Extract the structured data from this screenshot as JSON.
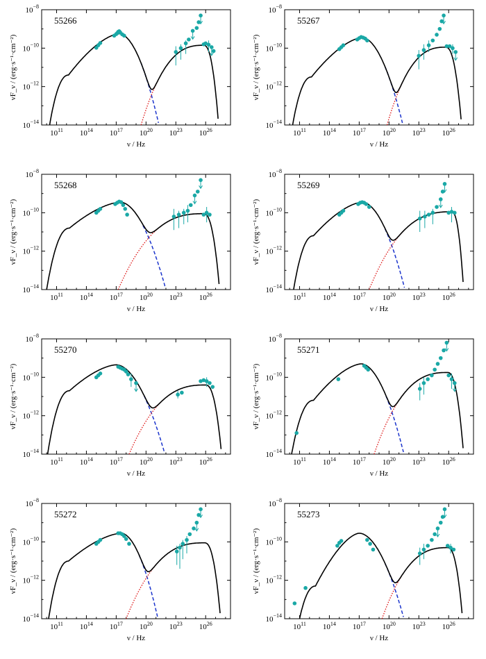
{
  "figure": {
    "xlabel": "ν / Hz",
    "ylabel": "νF_ν / (erg·s⁻¹·cm⁻²)",
    "x_ticks": [
      "10^11",
      "10^14",
      "10^17",
      "10^20",
      "10^23",
      "10^26"
    ],
    "y_ticks": [
      "10^-8",
      "10^-10",
      "10^-12",
      "10^-14"
    ]
  },
  "colors": {
    "data": "#1aa8a6",
    "total": "#000000",
    "synchrotron": "#1a33cc",
    "ssc": "#dd1111"
  },
  "chart_data": [
    {
      "type": "scatter",
      "title": "55266",
      "xlabel": "ν / Hz",
      "ylabel": "νF_ν / (erg·s⁻¹·cm⁻²)",
      "xlim_log": [
        9.5,
        28.5
      ],
      "ylim_log": [
        -14,
        -8
      ],
      "model": {
        "syn_peak": [
          17.3,
          -9.25
        ],
        "syn_start": [
          10.3,
          -14
        ],
        "syn_knee": [
          12.2,
          -11.4
        ],
        "syn_end": [
          21.3,
          -14
        ],
        "ssc_peak": [
          25.8,
          -9.85
        ],
        "ssc_start": [
          19.5,
          -14
        ],
        "ssc_end": [
          27.3,
          -14
        ],
        "dip": [
          20.7,
          -11.95
        ]
      },
      "data_points": [
        [
          15.0,
          -9.98
        ],
        [
          15.2,
          -9.85
        ],
        [
          15.4,
          -9.73
        ],
        [
          16.8,
          -9.35
        ],
        [
          17.0,
          -9.27
        ],
        [
          17.1,
          -9.22
        ],
        [
          17.2,
          -9.15
        ],
        [
          17.3,
          -9.12
        ],
        [
          17.4,
          -9.18
        ],
        [
          17.6,
          -9.28
        ],
        [
          17.8,
          -9.35
        ],
        [
          23.0,
          -10.2
        ],
        [
          23.5,
          -10.0
        ],
        [
          24.0,
          -9.75
        ],
        [
          24.3,
          -9.55
        ],
        [
          24.7,
          -9.1
        ],
        [
          25.1,
          -8.95
        ],
        [
          25.3,
          -8.65
        ],
        [
          25.5,
          -8.3
        ],
        [
          25.8,
          -9.8
        ],
        [
          26.0,
          -9.75
        ],
        [
          26.3,
          -9.82
        ],
        [
          26.6,
          -9.95
        ],
        [
          26.8,
          -10.15
        ]
      ],
      "error_bars": [
        [
          23.0,
          -10.9,
          -9.9
        ],
        [
          23.5,
          -10.6,
          -9.8
        ],
        [
          24.0,
          -10.3,
          -9.6
        ],
        [
          26.3,
          -10.2,
          -9.6
        ]
      ],
      "upper_limits": [
        [
          24.7,
          -9.1
        ],
        [
          25.5,
          -8.3
        ],
        [
          26.6,
          -9.95
        ]
      ]
    },
    {
      "type": "scatter",
      "title": "55267",
      "xlabel": "ν / Hz",
      "ylabel": "νF_ν / (erg·s⁻¹·cm⁻²)",
      "xlim_log": [
        9.5,
        28.5
      ],
      "ylim_log": [
        -14,
        -8
      ],
      "model": {
        "syn_peak": [
          17.3,
          -9.45
        ],
        "syn_start": [
          10.3,
          -14
        ],
        "syn_knee": [
          12.2,
          -11.5
        ],
        "syn_end": [
          21.4,
          -14
        ],
        "ssc_peak": [
          25.7,
          -9.95
        ],
        "ssc_start": [
          19.8,
          -14
        ],
        "ssc_end": [
          27.3,
          -14
        ],
        "dip": [
          20.8,
          -11.95
        ]
      },
      "data_points": [
        [
          15.0,
          -10.05
        ],
        [
          15.2,
          -9.95
        ],
        [
          15.4,
          -9.85
        ],
        [
          16.8,
          -9.55
        ],
        [
          17.0,
          -9.48
        ],
        [
          17.2,
          -9.42
        ],
        [
          17.4,
          -9.45
        ],
        [
          17.6,
          -9.5
        ],
        [
          17.8,
          -9.6
        ],
        [
          23.0,
          -10.4
        ],
        [
          23.5,
          -10.1
        ],
        [
          24.0,
          -9.85
        ],
        [
          24.4,
          -9.6
        ],
        [
          24.8,
          -9.3
        ],
        [
          25.1,
          -9.0
        ],
        [
          25.3,
          -8.6
        ],
        [
          25.5,
          -8.3
        ],
        [
          25.8,
          -9.9
        ],
        [
          26.1,
          -9.9
        ],
        [
          26.4,
          -10.0
        ],
        [
          26.7,
          -10.2
        ]
      ],
      "error_bars": [
        [
          23.0,
          -11.1,
          -10.1
        ],
        [
          23.5,
          -10.6,
          -9.8
        ],
        [
          24.0,
          -10.2,
          -9.6
        ],
        [
          26.4,
          -10.3,
          -9.8
        ]
      ],
      "upper_limits": [
        [
          25.5,
          -8.3
        ],
        [
          26.7,
          -10.2
        ]
      ]
    },
    {
      "type": "scatter",
      "title": "55268",
      "xlabel": "ν / Hz",
      "ylabel": "νF_ν / (erg·s⁻¹·cm⁻²)",
      "xlim_log": [
        9.5,
        28.5
      ],
      "ylim_log": [
        -14,
        -8
      ],
      "model": {
        "syn_peak": [
          17.4,
          -9.45
        ],
        "syn_start": [
          10.0,
          -14
        ],
        "syn_knee": [
          12.3,
          -10.8
        ],
        "syn_end": [
          22.0,
          -14
        ],
        "ssc_peak": [
          25.8,
          -10.05
        ],
        "ssc_start": [
          17.2,
          -14
        ],
        "ssc_end": [
          27.4,
          -14
        ],
        "dip": [
          20.9,
          -11.15
        ]
      },
      "data_points": [
        [
          15.0,
          -10.0
        ],
        [
          15.2,
          -9.9
        ],
        [
          15.4,
          -9.8
        ],
        [
          16.9,
          -9.55
        ],
        [
          17.1,
          -9.48
        ],
        [
          17.3,
          -9.42
        ],
        [
          17.5,
          -9.45
        ],
        [
          17.7,
          -9.6
        ],
        [
          17.9,
          -9.8
        ],
        [
          18.1,
          -10.1
        ],
        [
          22.8,
          -10.2
        ],
        [
          23.3,
          -10.1
        ],
        [
          23.8,
          -10.0
        ],
        [
          24.2,
          -9.9
        ],
        [
          24.5,
          -9.6
        ],
        [
          24.9,
          -9.1
        ],
        [
          25.2,
          -8.9
        ],
        [
          25.5,
          -8.3
        ],
        [
          25.8,
          -10.1
        ],
        [
          26.1,
          -10.0
        ],
        [
          26.4,
          -10.1
        ]
      ],
      "error_bars": [
        [
          22.8,
          -10.9,
          -9.8
        ],
        [
          23.3,
          -10.8,
          -9.9
        ],
        [
          23.8,
          -10.6,
          -9.8
        ],
        [
          24.2,
          -10.5,
          -9.6
        ],
        [
          26.1,
          -10.5,
          -9.7
        ]
      ],
      "upper_limits": [
        [
          25.5,
          -8.3
        ],
        [
          24.9,
          -9.1
        ]
      ]
    },
    {
      "type": "scatter",
      "title": "55269",
      "xlabel": "ν / Hz",
      "ylabel": "νF_ν / (erg·s⁻¹·cm⁻²)",
      "xlim_log": [
        9.5,
        28.5
      ],
      "ylim_log": [
        -14,
        -8
      ],
      "model": {
        "syn_peak": [
          17.3,
          -9.45
        ],
        "syn_start": [
          10.4,
          -14
        ],
        "syn_knee": [
          12.4,
          -11.2
        ],
        "syn_end": [
          21.6,
          -14
        ],
        "ssc_peak": [
          26.3,
          -9.95
        ],
        "ssc_start": [
          18.0,
          -14
        ],
        "ssc_end": [
          27.5,
          -14
        ],
        "dip": [
          20.8,
          -11.3
        ]
      },
      "data_points": [
        [
          15.0,
          -10.1
        ],
        [
          15.2,
          -10.0
        ],
        [
          15.4,
          -9.9
        ],
        [
          16.9,
          -9.55
        ],
        [
          17.1,
          -9.48
        ],
        [
          17.3,
          -9.45
        ],
        [
          17.5,
          -9.48
        ],
        [
          17.7,
          -9.55
        ],
        [
          18.0,
          -9.7
        ],
        [
          23.1,
          -10.3
        ],
        [
          23.6,
          -10.2
        ],
        [
          24.0,
          -10.1
        ],
        [
          24.4,
          -10.0
        ],
        [
          24.8,
          -9.7
        ],
        [
          25.2,
          -9.3
        ],
        [
          25.4,
          -8.9
        ],
        [
          25.6,
          -8.5
        ],
        [
          26.0,
          -10.0
        ],
        [
          26.3,
          -9.95
        ],
        [
          26.6,
          -10.0
        ]
      ],
      "error_bars": [
        [
          23.1,
          -11.0,
          -9.9
        ],
        [
          23.6,
          -10.8,
          -9.9
        ],
        [
          24.4,
          -10.6,
          -9.8
        ],
        [
          26.3,
          -10.5,
          -9.7
        ]
      ],
      "upper_limits": [
        [
          25.6,
          -8.5
        ],
        [
          25.2,
          -9.3
        ]
      ]
    },
    {
      "type": "scatter",
      "title": "55270",
      "xlabel": "ν / Hz",
      "ylabel": "νF_ν / (erg·s⁻¹·cm⁻²)",
      "xlim_log": [
        9.5,
        28.5
      ],
      "ylim_log": [
        -14,
        -8
      ],
      "model": {
        "syn_peak": [
          17.0,
          -9.35
        ],
        "syn_start": [
          10.1,
          -14
        ],
        "syn_knee": [
          12.3,
          -10.7
        ],
        "syn_end": [
          21.9,
          -14
        ],
        "ssc_peak": [
          26.0,
          -10.4
        ],
        "ssc_start": [
          18.3,
          -14
        ],
        "ssc_end": [
          27.6,
          -14
        ],
        "dip": [
          21.0,
          -11.4
        ]
      },
      "data_points": [
        [
          15.0,
          -10.0
        ],
        [
          15.2,
          -9.9
        ],
        [
          15.4,
          -9.8
        ],
        [
          17.2,
          -9.45
        ],
        [
          17.4,
          -9.5
        ],
        [
          17.6,
          -9.55
        ],
        [
          17.8,
          -9.6
        ],
        [
          18.0,
          -9.7
        ],
        [
          18.2,
          -9.85
        ],
        [
          18.5,
          -10.1
        ],
        [
          19.0,
          -10.3
        ],
        [
          23.2,
          -10.9
        ],
        [
          23.6,
          -10.8
        ],
        [
          25.5,
          -10.2
        ],
        [
          25.8,
          -10.15
        ],
        [
          26.1,
          -10.2
        ],
        [
          26.4,
          -10.3
        ],
        [
          26.7,
          -10.5
        ]
      ],
      "error_bars": [
        [
          18.5,
          -10.5,
          -9.8
        ],
        [
          23.2,
          -11.1,
          -10.7
        ],
        [
          26.1,
          -10.5,
          -10.0
        ]
      ],
      "upper_limits": [
        [
          19.0,
          -10.3
        ]
      ]
    },
    {
      "type": "scatter",
      "title": "55271",
      "xlabel": "ν / Hz",
      "ylabel": "νF_ν / (erg·s⁻¹·cm⁻²)",
      "xlim_log": [
        9.5,
        28.5
      ],
      "ylim_log": [
        -14,
        -8
      ],
      "model": {
        "syn_peak": [
          17.2,
          -9.3
        ],
        "syn_start": [
          10.2,
          -14
        ],
        "syn_knee": [
          12.4,
          -11.2
        ],
        "syn_end": [
          21.5,
          -14
        ],
        "ssc_peak": [
          25.9,
          -9.75
        ],
        "ssc_start": [
          18.5,
          -14
        ],
        "ssc_end": [
          27.5,
          -14
        ],
        "dip": [
          20.9,
          -11.7
        ]
      },
      "data_points": [
        [
          10.7,
          -12.9
        ],
        [
          14.9,
          -10.1
        ],
        [
          17.5,
          -9.4
        ],
        [
          17.7,
          -9.5
        ],
        [
          17.9,
          -9.6
        ],
        [
          23.1,
          -10.6
        ],
        [
          23.5,
          -10.3
        ],
        [
          23.9,
          -10.1
        ],
        [
          24.3,
          -9.9
        ],
        [
          24.6,
          -9.6
        ],
        [
          24.9,
          -9.3
        ],
        [
          25.2,
          -9.0
        ],
        [
          25.5,
          -8.6
        ],
        [
          25.8,
          -8.2
        ],
        [
          26.0,
          -9.9
        ],
        [
          26.3,
          -10.1
        ],
        [
          26.6,
          -10.3
        ]
      ],
      "error_bars": [
        [
          23.1,
          -11.2,
          -10.3
        ],
        [
          23.5,
          -10.9,
          -10.0
        ],
        [
          26.3,
          -10.6,
          -9.8
        ]
      ],
      "upper_limits": [
        [
          25.8,
          -8.2
        ],
        [
          26.6,
          -10.3
        ]
      ]
    },
    {
      "type": "scatter",
      "title": "55272",
      "xlabel": "ν / Hz",
      "ylabel": "νF_ν / (erg·s⁻¹·cm⁻²)",
      "xlim_log": [
        9.5,
        28.5
      ],
      "ylim_log": [
        -14,
        -8
      ],
      "model": {
        "syn_peak": [
          17.5,
          -9.55
        ],
        "syn_start": [
          10.2,
          -14
        ],
        "syn_knee": [
          12.2,
          -11.0
        ],
        "syn_end": [
          21.2,
          -14
        ],
        "ssc_peak": [
          25.9,
          -10.05
        ],
        "ssc_start": [
          18.0,
          -14
        ],
        "ssc_end": [
          27.5,
          -14
        ],
        "dip": [
          20.5,
          -11.55
        ]
      },
      "data_points": [
        [
          15.0,
          -10.1
        ],
        [
          15.2,
          -10.0
        ],
        [
          15.4,
          -9.9
        ],
        [
          17.2,
          -9.55
        ],
        [
          17.4,
          -9.55
        ],
        [
          17.6,
          -9.6
        ],
        [
          17.8,
          -9.7
        ],
        [
          18.0,
          -9.85
        ],
        [
          18.3,
          -10.1
        ],
        [
          23.1,
          -10.5
        ],
        [
          23.4,
          -10.3
        ],
        [
          23.7,
          -10.1
        ],
        [
          24.1,
          -9.9
        ],
        [
          24.4,
          -9.6
        ],
        [
          24.8,
          -9.3
        ],
        [
          25.1,
          -9.0
        ],
        [
          25.3,
          -8.6
        ],
        [
          25.5,
          -8.3
        ]
      ],
      "error_bars": [
        [
          23.1,
          -11.2,
          -10.2
        ],
        [
          23.4,
          -11.4,
          -10.1
        ],
        [
          23.7,
          -10.9,
          -9.9
        ],
        [
          24.1,
          -10.6,
          -9.7
        ]
      ],
      "upper_limits": [
        [
          25.5,
          -8.3
        ],
        [
          25.1,
          -9.0
        ]
      ]
    },
    {
      "type": "scatter",
      "title": "55273",
      "xlabel": "ν / Hz",
      "ylabel": "νF_ν / (erg·s⁻¹·cm⁻²)",
      "xlim_log": [
        9.5,
        28.5
      ],
      "ylim_log": [
        -14,
        -8
      ],
      "model": {
        "syn_peak": [
          17.0,
          -9.55
        ],
        "syn_start": [
          11.0,
          -14
        ],
        "syn_knee": [
          12.6,
          -12.3
        ],
        "syn_end": [
          21.5,
          -14
        ],
        "ssc_peak": [
          25.9,
          -10.3
        ],
        "ssc_start": [
          19.3,
          -14
        ],
        "ssc_end": [
          27.4,
          -14
        ],
        "dip": [
          20.8,
          -11.85
        ]
      },
      "data_points": [
        [
          10.5,
          -13.2
        ],
        [
          11.6,
          -12.4
        ],
        [
          14.8,
          -10.2
        ],
        [
          15.0,
          -10.05
        ],
        [
          15.2,
          -9.95
        ],
        [
          17.8,
          -9.9
        ],
        [
          18.1,
          -10.1
        ],
        [
          18.4,
          -10.4
        ],
        [
          23.1,
          -10.6
        ],
        [
          23.5,
          -10.4
        ],
        [
          23.9,
          -10.2
        ],
        [
          24.3,
          -9.9
        ],
        [
          24.6,
          -9.6
        ],
        [
          24.9,
          -9.3
        ],
        [
          25.2,
          -9.0
        ],
        [
          25.4,
          -8.7
        ],
        [
          25.6,
          -8.3
        ],
        [
          25.9,
          -10.2
        ],
        [
          26.2,
          -10.3
        ],
        [
          26.5,
          -10.4
        ]
      ],
      "error_bars": [
        [
          23.1,
          -11.2,
          -10.3
        ],
        [
          23.5,
          -10.9,
          -10.1
        ],
        [
          26.2,
          -10.6,
          -10.1
        ]
      ],
      "upper_limits": [
        [
          25.6,
          -8.3
        ],
        [
          24.9,
          -9.3
        ]
      ]
    }
  ]
}
